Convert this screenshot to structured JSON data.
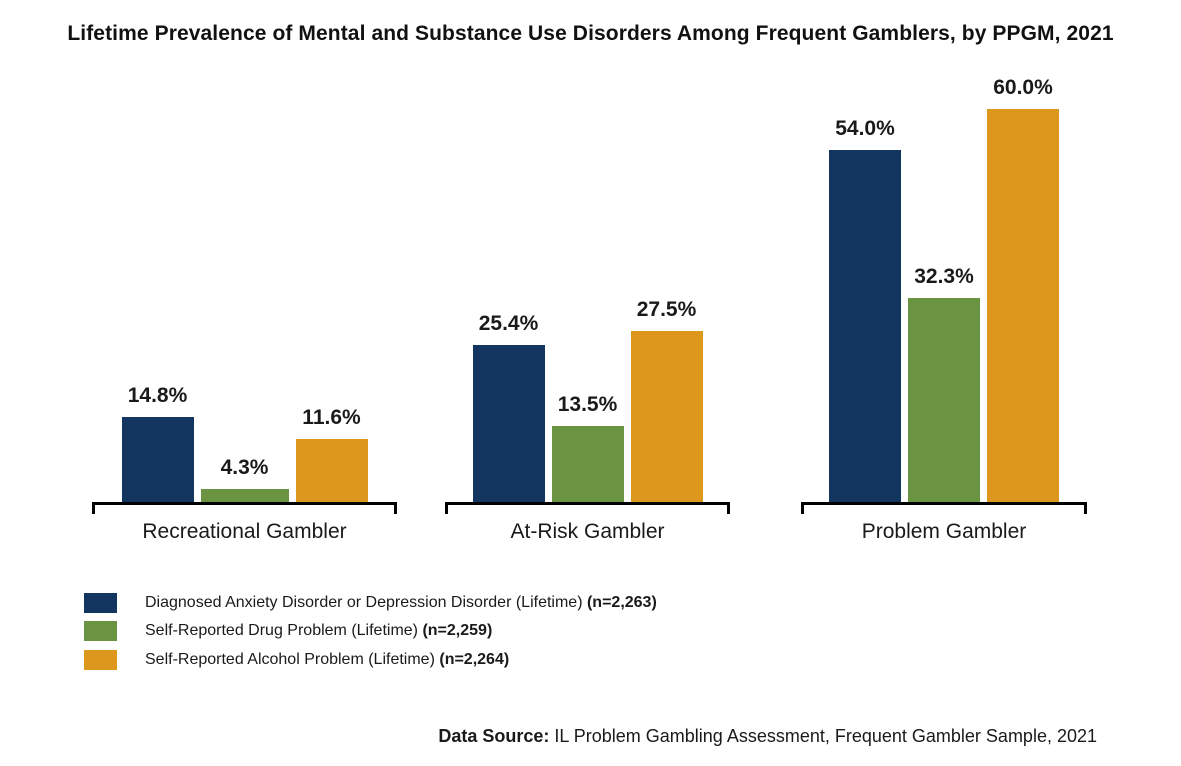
{
  "title": "Lifetime Prevalence of Mental and Substance Use Disorders Among Frequent Gamblers, by PPGM, 2021",
  "chart_data": {
    "type": "bar",
    "grouped": true,
    "title": "Lifetime Prevalence of Mental and Substance Use Disorders Among Frequent Gamblers, by PPGM, 2021",
    "categories": [
      "Recreational Gambler",
      "At-Risk Gambler",
      "Problem Gambler"
    ],
    "series": [
      {
        "name": "Diagnosed Anxiety Disorder or Depression Disorder (Lifetime)",
        "n_label": "(n=2,263)",
        "color": "#123660",
        "values": [
          14.8,
          25.4,
          54.0
        ],
        "value_labels": [
          "14.8%",
          "25.4%",
          "54.0%"
        ]
      },
      {
        "name": "Self-Reported Drug Problem (Lifetime)",
        "n_label": "(n=2,259)",
        "color": "#6B9442",
        "values": [
          4.3,
          13.5,
          32.3
        ],
        "value_labels": [
          "4.3%",
          "13.5%",
          "32.3%"
        ]
      },
      {
        "name": "Self-Reported Alcohol Problem (Lifetime)",
        "n_label": "(n=2,264)",
        "color": "#DE971D",
        "values": [
          11.6,
          27.5,
          60.0
        ],
        "value_labels": [
          "11.6%",
          "27.5%",
          "60.0%"
        ]
      }
    ],
    "unit": "%",
    "ylim": [
      0,
      65
    ],
    "grid": false,
    "y_axis_visible": false,
    "legend_position": "bottom-left",
    "axis_color": "#000000"
  },
  "footer": {
    "label": "Data Source:",
    "text": " IL Problem Gambling Assessment, Frequent Gambler Sample, 2021"
  }
}
